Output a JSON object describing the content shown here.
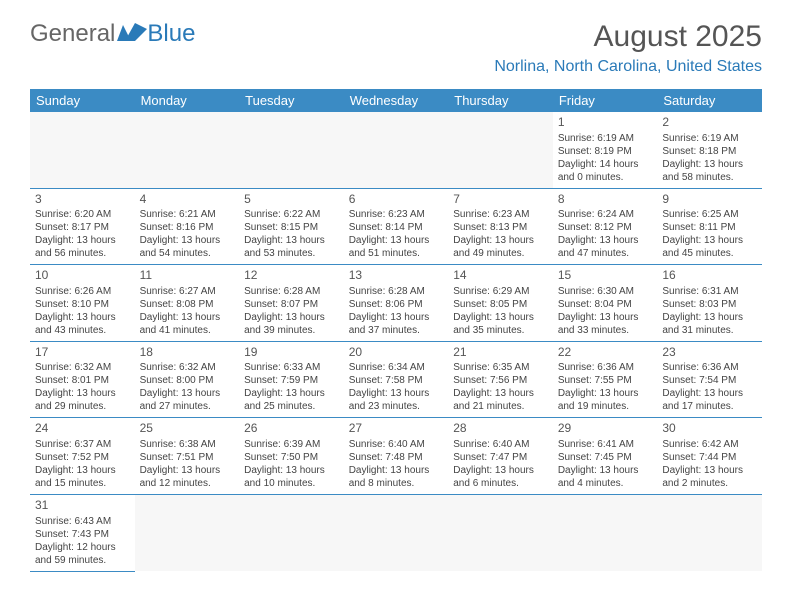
{
  "logo": {
    "text1": "General",
    "text2": "Blue"
  },
  "title": "August 2025",
  "location": "Norlina, North Carolina, United States",
  "colors": {
    "header_bg": "#3b8bc4",
    "header_text": "#ffffff",
    "accent": "#2a7ab8",
    "body_text": "#444444",
    "rule": "#3b8bc4"
  },
  "table": {
    "columns": [
      "Sunday",
      "Monday",
      "Tuesday",
      "Wednesday",
      "Thursday",
      "Friday",
      "Saturday"
    ],
    "weeks": [
      [
        null,
        null,
        null,
        null,
        null,
        {
          "day": "1",
          "sunrise": "6:19 AM",
          "sunset": "8:19 PM",
          "daylight": "14 hours and 0 minutes."
        },
        {
          "day": "2",
          "sunrise": "6:19 AM",
          "sunset": "8:18 PM",
          "daylight": "13 hours and 58 minutes."
        }
      ],
      [
        {
          "day": "3",
          "sunrise": "6:20 AM",
          "sunset": "8:17 PM",
          "daylight": "13 hours and 56 minutes."
        },
        {
          "day": "4",
          "sunrise": "6:21 AM",
          "sunset": "8:16 PM",
          "daylight": "13 hours and 54 minutes."
        },
        {
          "day": "5",
          "sunrise": "6:22 AM",
          "sunset": "8:15 PM",
          "daylight": "13 hours and 53 minutes."
        },
        {
          "day": "6",
          "sunrise": "6:23 AM",
          "sunset": "8:14 PM",
          "daylight": "13 hours and 51 minutes."
        },
        {
          "day": "7",
          "sunrise": "6:23 AM",
          "sunset": "8:13 PM",
          "daylight": "13 hours and 49 minutes."
        },
        {
          "day": "8",
          "sunrise": "6:24 AM",
          "sunset": "8:12 PM",
          "daylight": "13 hours and 47 minutes."
        },
        {
          "day": "9",
          "sunrise": "6:25 AM",
          "sunset": "8:11 PM",
          "daylight": "13 hours and 45 minutes."
        }
      ],
      [
        {
          "day": "10",
          "sunrise": "6:26 AM",
          "sunset": "8:10 PM",
          "daylight": "13 hours and 43 minutes."
        },
        {
          "day": "11",
          "sunrise": "6:27 AM",
          "sunset": "8:08 PM",
          "daylight": "13 hours and 41 minutes."
        },
        {
          "day": "12",
          "sunrise": "6:28 AM",
          "sunset": "8:07 PM",
          "daylight": "13 hours and 39 minutes."
        },
        {
          "day": "13",
          "sunrise": "6:28 AM",
          "sunset": "8:06 PM",
          "daylight": "13 hours and 37 minutes."
        },
        {
          "day": "14",
          "sunrise": "6:29 AM",
          "sunset": "8:05 PM",
          "daylight": "13 hours and 35 minutes."
        },
        {
          "day": "15",
          "sunrise": "6:30 AM",
          "sunset": "8:04 PM",
          "daylight": "13 hours and 33 minutes."
        },
        {
          "day": "16",
          "sunrise": "6:31 AM",
          "sunset": "8:03 PM",
          "daylight": "13 hours and 31 minutes."
        }
      ],
      [
        {
          "day": "17",
          "sunrise": "6:32 AM",
          "sunset": "8:01 PM",
          "daylight": "13 hours and 29 minutes."
        },
        {
          "day": "18",
          "sunrise": "6:32 AM",
          "sunset": "8:00 PM",
          "daylight": "13 hours and 27 minutes."
        },
        {
          "day": "19",
          "sunrise": "6:33 AM",
          "sunset": "7:59 PM",
          "daylight": "13 hours and 25 minutes."
        },
        {
          "day": "20",
          "sunrise": "6:34 AM",
          "sunset": "7:58 PM",
          "daylight": "13 hours and 23 minutes."
        },
        {
          "day": "21",
          "sunrise": "6:35 AM",
          "sunset": "7:56 PM",
          "daylight": "13 hours and 21 minutes."
        },
        {
          "day": "22",
          "sunrise": "6:36 AM",
          "sunset": "7:55 PM",
          "daylight": "13 hours and 19 minutes."
        },
        {
          "day": "23",
          "sunrise": "6:36 AM",
          "sunset": "7:54 PM",
          "daylight": "13 hours and 17 minutes."
        }
      ],
      [
        {
          "day": "24",
          "sunrise": "6:37 AM",
          "sunset": "7:52 PM",
          "daylight": "13 hours and 15 minutes."
        },
        {
          "day": "25",
          "sunrise": "6:38 AM",
          "sunset": "7:51 PM",
          "daylight": "13 hours and 12 minutes."
        },
        {
          "day": "26",
          "sunrise": "6:39 AM",
          "sunset": "7:50 PM",
          "daylight": "13 hours and 10 minutes."
        },
        {
          "day": "27",
          "sunrise": "6:40 AM",
          "sunset": "7:48 PM",
          "daylight": "13 hours and 8 minutes."
        },
        {
          "day": "28",
          "sunrise": "6:40 AM",
          "sunset": "7:47 PM",
          "daylight": "13 hours and 6 minutes."
        },
        {
          "day": "29",
          "sunrise": "6:41 AM",
          "sunset": "7:45 PM",
          "daylight": "13 hours and 4 minutes."
        },
        {
          "day": "30",
          "sunrise": "6:42 AM",
          "sunset": "7:44 PM",
          "daylight": "13 hours and 2 minutes."
        }
      ],
      [
        {
          "day": "31",
          "sunrise": "6:43 AM",
          "sunset": "7:43 PM",
          "daylight": "12 hours and 59 minutes."
        },
        null,
        null,
        null,
        null,
        null,
        null
      ]
    ],
    "labels": {
      "sunrise_prefix": "Sunrise: ",
      "sunset_prefix": "Sunset: ",
      "daylight_prefix": "Daylight: "
    }
  }
}
